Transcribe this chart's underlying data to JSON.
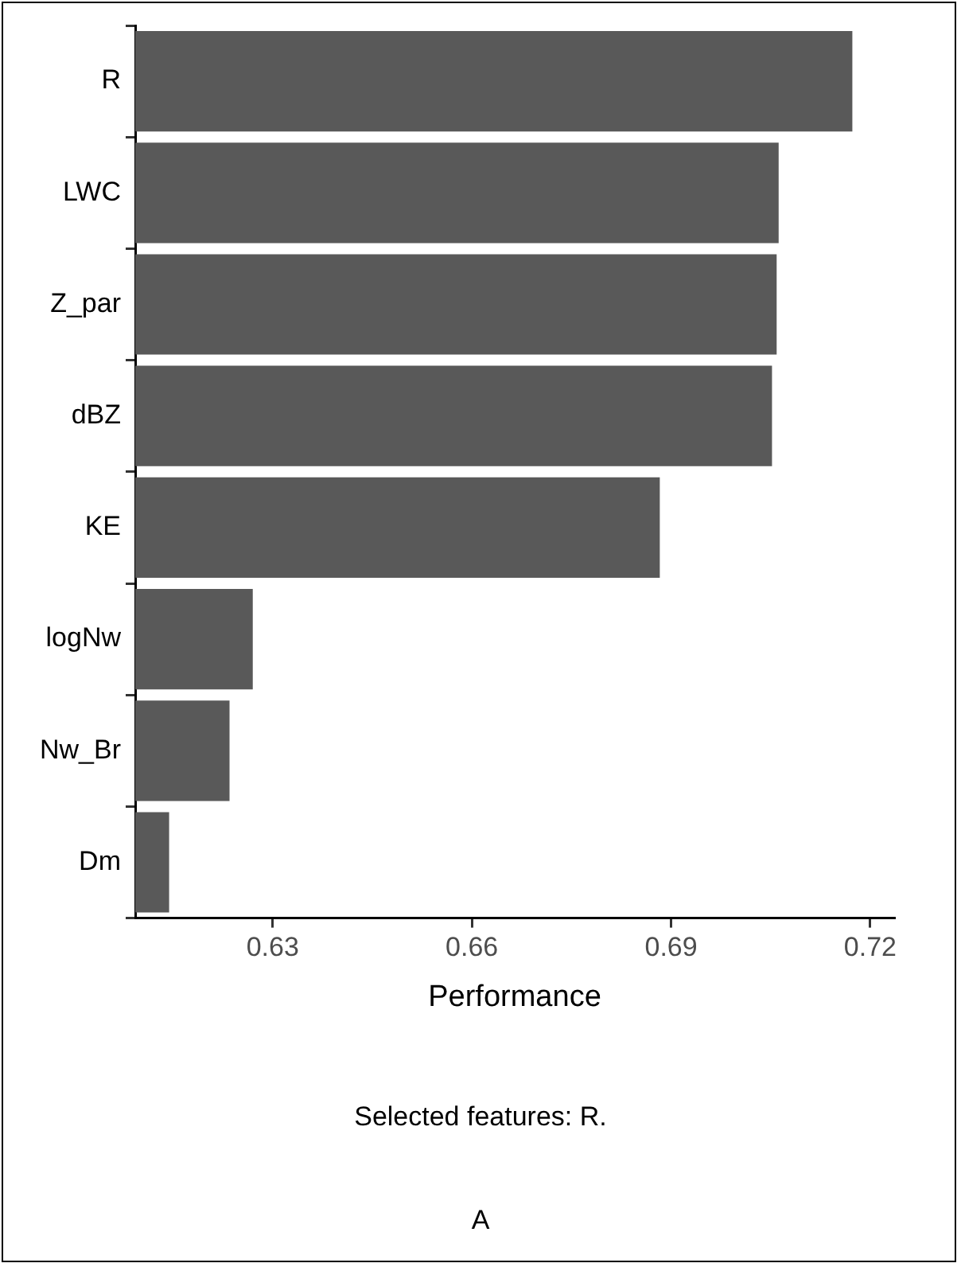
{
  "chart_data": {
    "type": "bar",
    "orientation": "horizontal",
    "xlabel": "Performance",
    "categories": [
      "R",
      "LWC",
      "Z_par",
      "dBZ",
      "KE",
      "logNw",
      "Nw_Br",
      "Dm"
    ],
    "values": [
      0.7173,
      0.7062,
      0.7059,
      0.7052,
      0.6883,
      0.627,
      0.6235,
      0.6144
    ],
    "color": "#595959",
    "xlim": [
      0.6093,
      0.7236
    ],
    "xticks": [
      0.63,
      0.66,
      0.69,
      0.72
    ],
    "grid": false,
    "legend": false,
    "annotations": [
      "Selected features: R.",
      "A"
    ]
  }
}
